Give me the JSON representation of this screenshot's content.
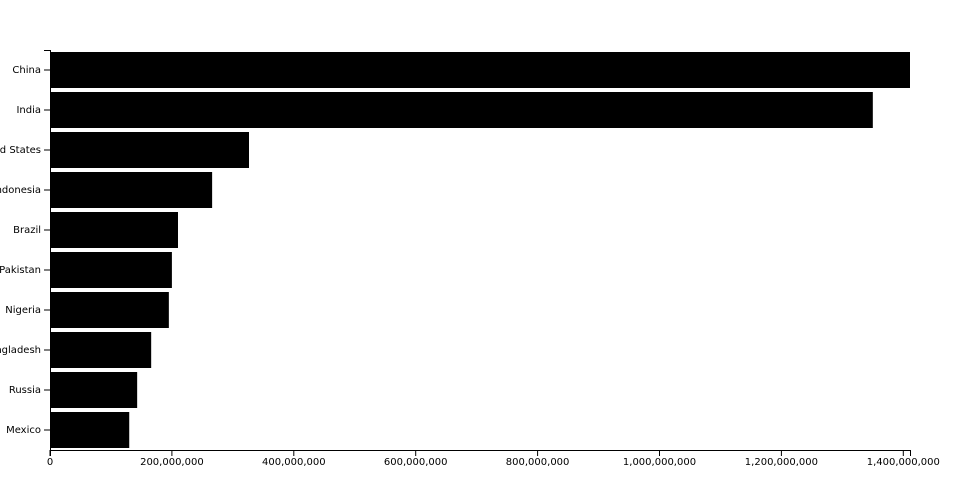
{
  "chart_data": {
    "type": "bar",
    "orientation": "horizontal",
    "color": "#000000",
    "categories": [
      "China",
      "India",
      "United States",
      "Indonesia",
      "Brazil",
      "Pakistan",
      "Nigeria",
      "Bangladesh",
      "Russia",
      "Mexico"
    ],
    "values": [
      1411000000,
      1350000000,
      326500000,
      266000000,
      210000000,
      200000000,
      195000000,
      166000000,
      143000000,
      130000000
    ],
    "xlim": [
      0,
      1411000000
    ],
    "xticks": [
      0,
      {
        "value": 200000000,
        "label": "200,000,000"
      },
      {
        "value": 400000000,
        "label": "400,000,000"
      },
      {
        "value": 600000000,
        "label": "600,000,000"
      },
      {
        "value": 800000000,
        "label": "800,000,000"
      },
      {
        "value": 1000000000,
        "label": "1,000,000,000"
      },
      {
        "value": 1200000000,
        "label": "1,200,000,000"
      },
      {
        "value": 1400000000,
        "label": "1,400,000,000"
      }
    ]
  }
}
